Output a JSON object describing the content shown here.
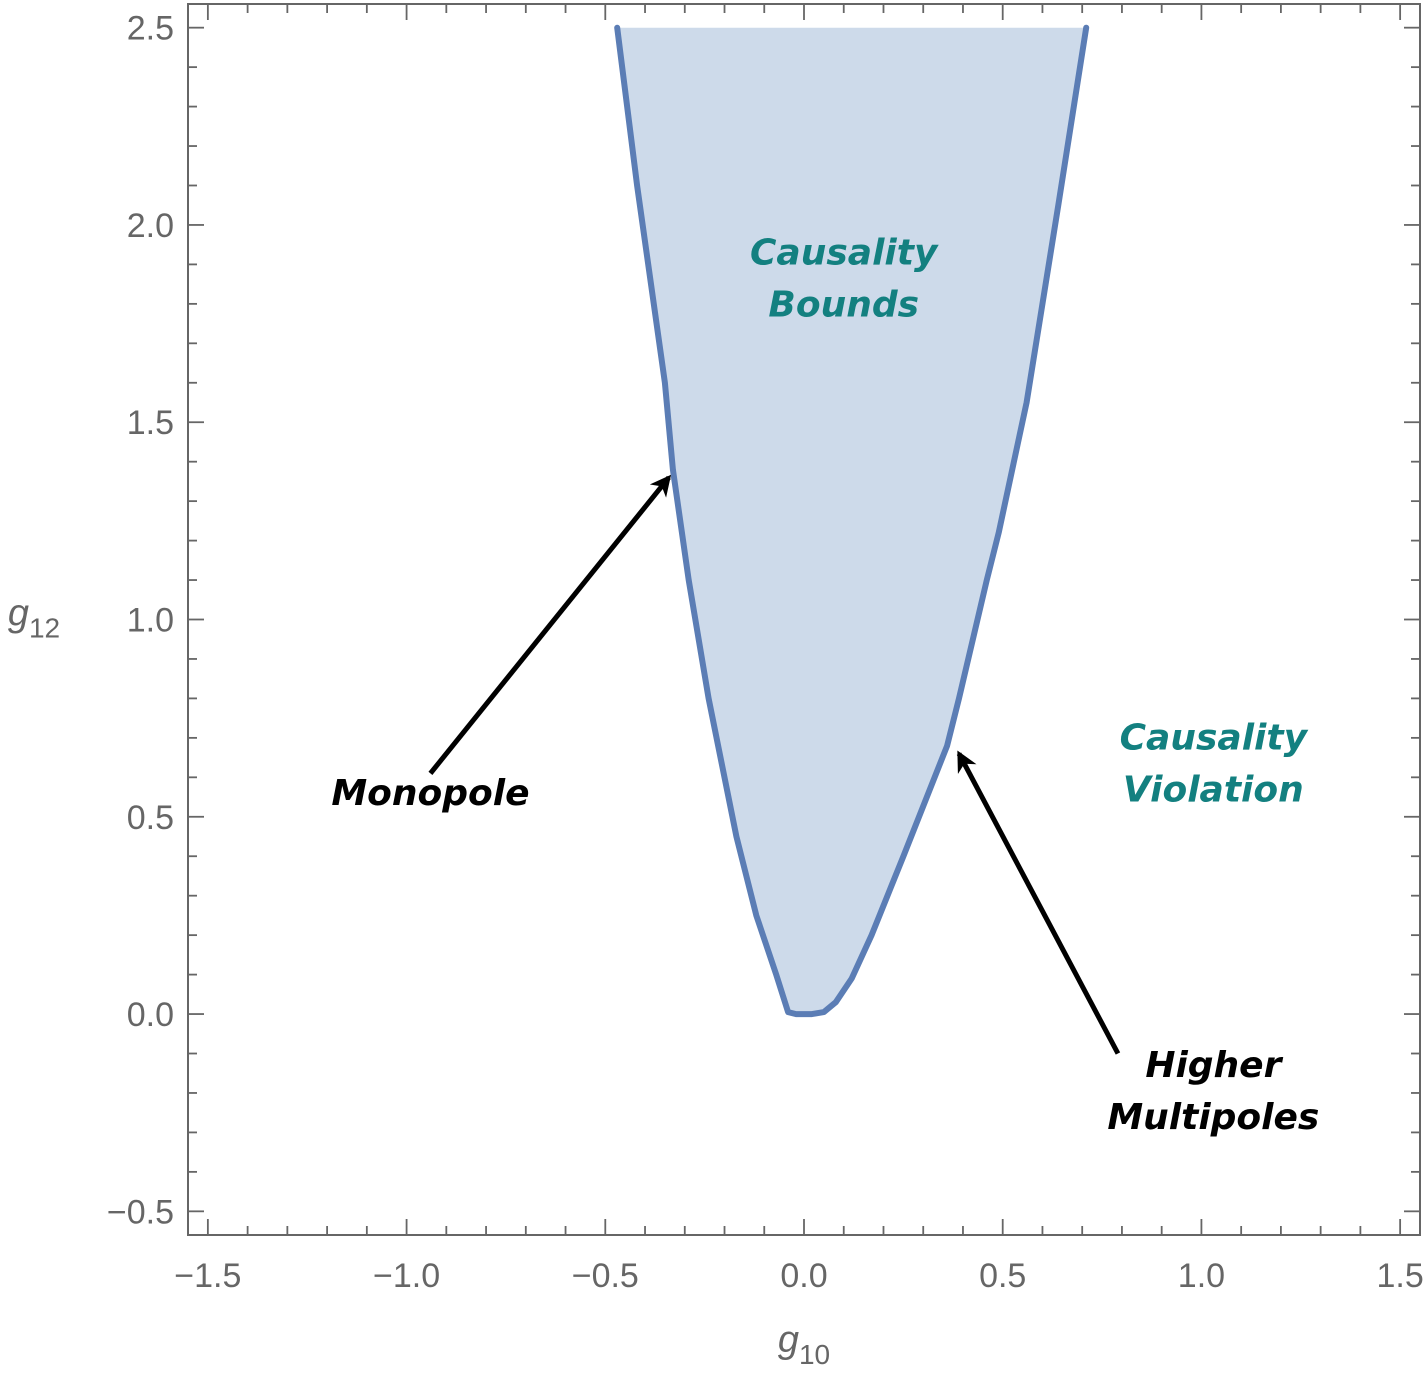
{
  "chart_data": {
    "type": "area",
    "title": "",
    "xlabel": {
      "base": "g",
      "sub": "10"
    },
    "ylabel": {
      "base": "g",
      "sub": "12"
    },
    "xlim": [
      -1.55,
      1.55
    ],
    "ylim": [
      -0.56,
      2.56
    ],
    "x_ticks": [
      -1.5,
      -1.0,
      -0.5,
      0.0,
      0.5,
      1.0,
      1.5
    ],
    "x_tick_labels": [
      "−1.5",
      "−1.0",
      "−0.5",
      "0.0",
      "0.5",
      "1.0",
      "1.5"
    ],
    "y_ticks": [
      -0.5,
      0.0,
      0.5,
      1.0,
      1.5,
      2.0,
      2.5
    ],
    "y_tick_labels": [
      "−0.5",
      "0.0",
      "0.5",
      "1.0",
      "1.5",
      "2.0",
      "2.5"
    ],
    "x_minor_step": 0.1,
    "y_minor_step": 0.1,
    "grid": false,
    "colors": {
      "fill": "#cddaea",
      "boundary": "#5b7db5",
      "region_text": "#138080",
      "axes": "#666666",
      "annotation": "#000000"
    },
    "series": [
      {
        "role": "allowed-region-boundary",
        "points": [
          [
            -0.47,
            2.5
          ],
          [
            -0.42,
            2.1
          ],
          [
            -0.35,
            1.6
          ],
          [
            -0.33,
            1.38
          ],
          [
            -0.29,
            1.1
          ],
          [
            -0.24,
            0.8
          ],
          [
            -0.17,
            0.45
          ],
          [
            -0.12,
            0.25
          ],
          [
            -0.07,
            0.1
          ],
          [
            -0.04,
            0.005
          ],
          [
            -0.02,
            0.0
          ],
          [
            0.0,
            0.0
          ],
          [
            0.02,
            0.0
          ],
          [
            0.05,
            0.005
          ],
          [
            0.08,
            0.03
          ],
          [
            0.12,
            0.09
          ],
          [
            0.17,
            0.2
          ],
          [
            0.25,
            0.4
          ],
          [
            0.36,
            0.68
          ],
          [
            0.39,
            0.8
          ],
          [
            0.46,
            1.1
          ],
          [
            0.49,
            1.22
          ],
          [
            0.56,
            1.55
          ],
          [
            0.64,
            2.05
          ],
          [
            0.71,
            2.5
          ]
        ]
      }
    ],
    "region_labels": [
      {
        "lines": [
          "Causality",
          "Bounds"
        ],
        "x": 0.1,
        "y": 1.9
      },
      {
        "lines": [
          "Causality",
          "Violation"
        ],
        "x": 1.03,
        "y": 0.67
      }
    ],
    "annotations": [
      {
        "lines": [
          "Monopole"
        ],
        "x": -0.94,
        "y": 0.53,
        "arrow_from": [
          -0.94,
          0.61
        ],
        "arrow_to": [
          -0.34,
          1.36
        ]
      },
      {
        "lines": [
          "Higher",
          "Multipoles"
        ],
        "x": 1.03,
        "y": -0.16,
        "arrow_from": [
          0.79,
          -0.1
        ],
        "arrow_to": [
          0.39,
          0.66
        ]
      }
    ]
  }
}
